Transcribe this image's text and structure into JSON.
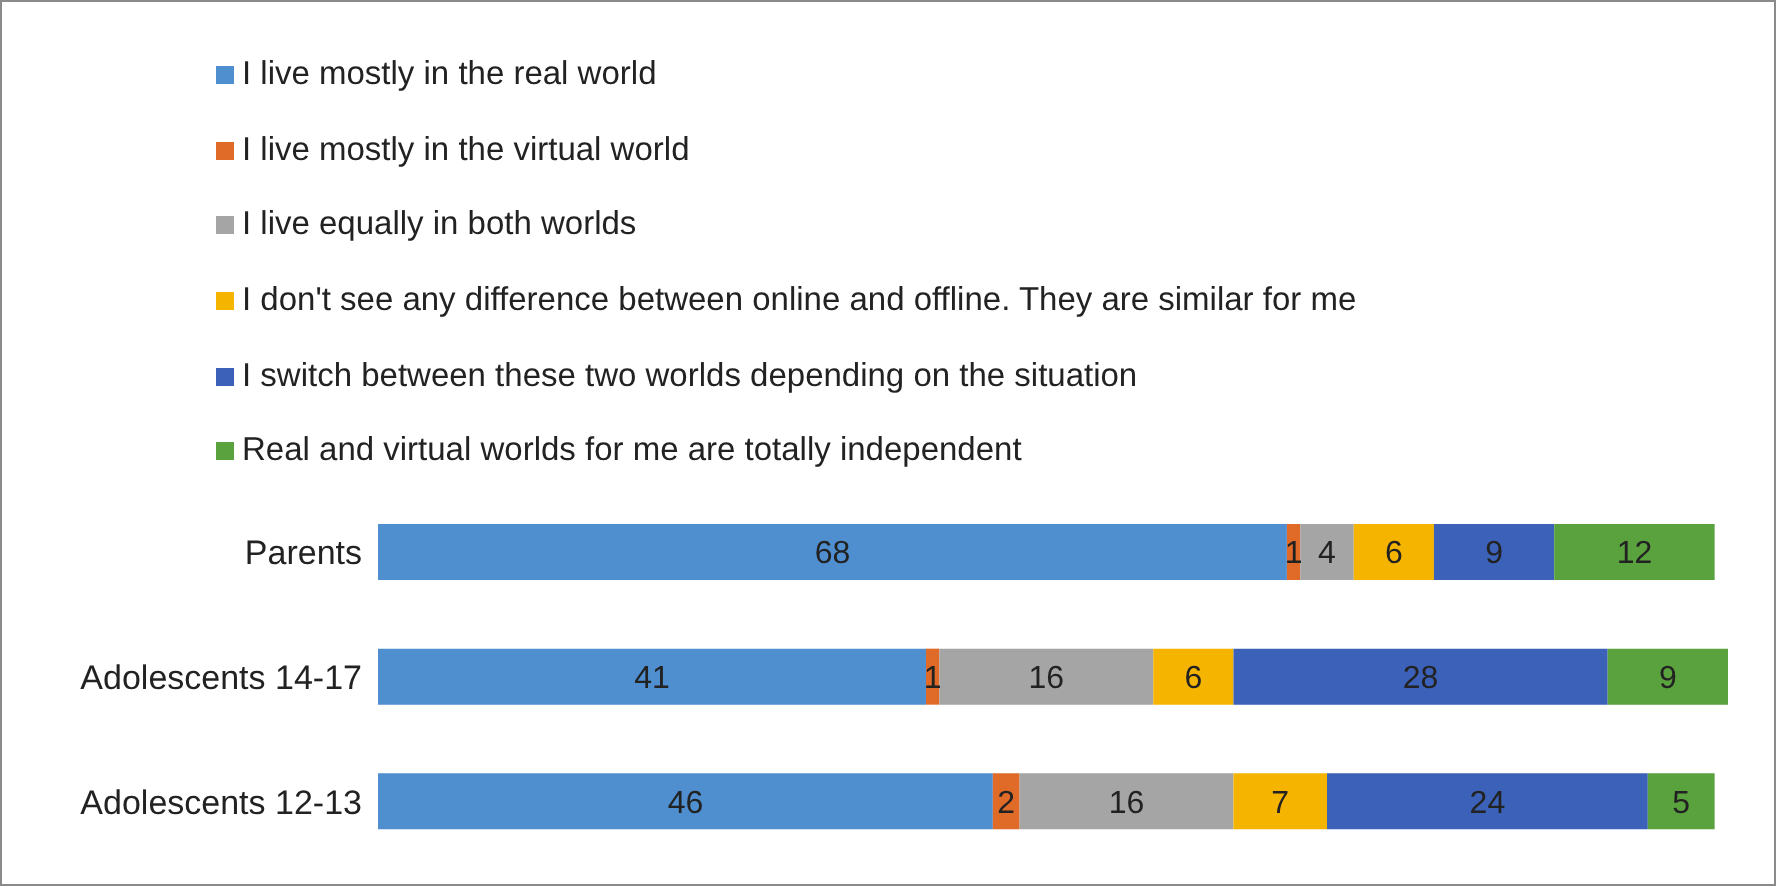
{
  "chart_data": {
    "type": "bar",
    "orientation": "horizontal",
    "stacked": true,
    "data_labels": true,
    "legend": "top",
    "tick_labels": "y",
    "xlim": [
      0,
      101
    ],
    "categories": [
      "Parents",
      "Adolescents 14-17",
      "Adolescents 12-13"
    ],
    "series": [
      {
        "name": "I live mostly in the real world",
        "color": "#4f8fd0",
        "values": [
          68,
          41,
          46
        ]
      },
      {
        "name": "I live mostly in the virtual world",
        "color": "#e06a28",
        "values": [
          1,
          1,
          2
        ]
      },
      {
        "name": "I live equally in both worlds",
        "color": "#a5a5a5",
        "values": [
          4,
          16,
          16
        ]
      },
      {
        "name": "I don't see any difference between online and offline. They are similar for me",
        "color": "#f5b400",
        "values": [
          6,
          6,
          7
        ]
      },
      {
        "name": "I switch between these two worlds depending on the situation",
        "color": "#3b62b8",
        "values": [
          9,
          28,
          24
        ]
      },
      {
        "name": "Real and virtual worlds for me are totally independent",
        "color": "#5aa23e",
        "values": [
          12,
          9,
          5
        ]
      }
    ]
  }
}
